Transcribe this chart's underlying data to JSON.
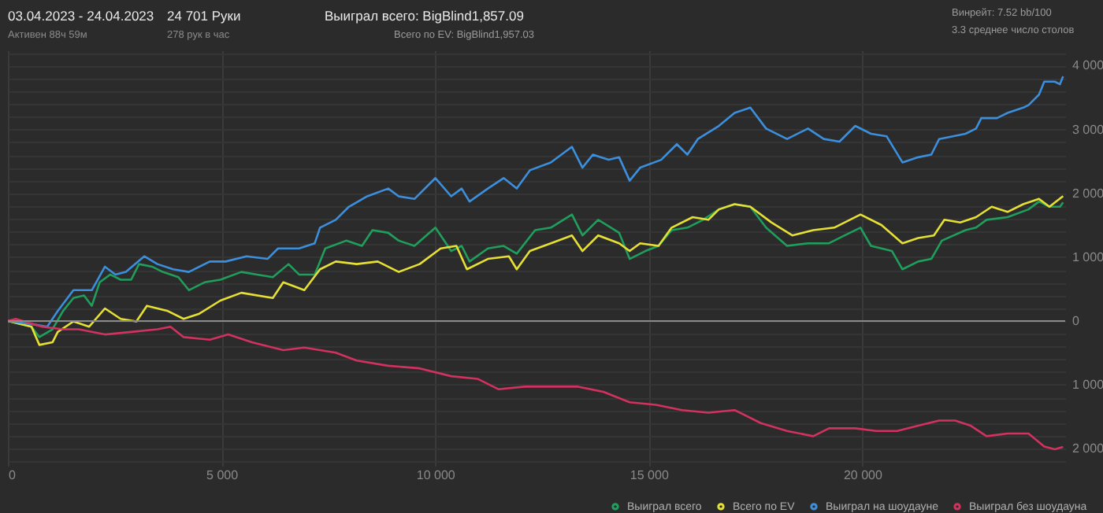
{
  "chart_data": {
    "type": "line",
    "title": "03.04.2023 - 24.04.2023",
    "subtitle": "Активен 88ч 59м",
    "annotations": [
      "24 701 Руки",
      "278 рук в час",
      "Выиграл всего: BigBlind1,857.09",
      "Всего по EV: BigBlind1,957.03",
      "Винрейт: 7.52 bb/100",
      "3.3 среднее число столов"
    ],
    "series": [
      {
        "name": "Выиграл всего",
        "color": "#1f9e5c",
        "x": [
          0,
          553,
          737,
          1044,
          1290,
          1535,
          1781,
          1965,
          2149,
          2395,
          2640,
          2886,
          3070,
          3377,
          3623,
          3991,
          4237,
          4605,
          4974,
          5465,
          5833,
          6202,
          6570,
          6816,
          7184,
          7430,
          7921,
          8289,
          8535,
          8903,
          9149,
          9517,
          10008,
          10377,
          10622,
          10807,
          11236,
          11605,
          11912,
          12342,
          12710,
          13204,
          13450,
          13818,
          14309,
          14555,
          14923,
          15230,
          15537,
          15906,
          16274,
          16643,
          17011,
          17380,
          17748,
          18239,
          18730,
          19221,
          19590,
          19958,
          20204,
          20695,
          20941,
          21309,
          21616,
          21862,
          22417,
          22663,
          22909,
          23400,
          23891,
          24137,
          24382,
          24628,
          24701
        ],
        "values": [
          0,
          -90,
          -253,
          -131,
          155,
          359,
          400,
          237,
          605,
          727,
          646,
          646,
          891,
          850,
          768,
          686,
          482,
          605,
          646,
          768,
          727,
          686,
          891,
          727,
          727,
          1136,
          1258,
          1176,
          1422,
          1381,
          1258,
          1176,
          1462,
          1095,
          1176,
          931,
          1136,
          1176,
          1054,
          1422,
          1462,
          1667,
          1340,
          1585,
          1381,
          972,
          1095,
          1176,
          1422,
          1462,
          1585,
          1748,
          1830,
          1789,
          1462,
          1176,
          1217,
          1217,
          1340,
          1462,
          1176,
          1095,
          809,
          931,
          972,
          1258,
          1422,
          1462,
          1585,
          1626,
          1748,
          1871,
          1789,
          1789,
          1857
        ]
      },
      {
        "name": "Всего по EV",
        "color": "#e6e035",
        "x": [
          0,
          553,
          737,
          1044,
          1167,
          1535,
          1903,
          2272,
          2640,
          3009,
          3254,
          3745,
          4114,
          4482,
          4974,
          5465,
          6202,
          6447,
          6939,
          7307,
          7675,
          8166,
          8658,
          9149,
          9640,
          10131,
          10500,
          10745,
          11236,
          11728,
          11912,
          12219,
          12710,
          13204,
          13450,
          13818,
          14309,
          14555,
          14801,
          15230,
          15537,
          16029,
          16397,
          16643,
          17011,
          17380,
          17871,
          18362,
          18853,
          19344,
          19958,
          20449,
          20941,
          21309,
          21677,
          21923,
          22294,
          22663,
          23031,
          23400,
          23768,
          24137,
          24382,
          24701
        ],
        "values": [
          0,
          -90,
          -376,
          -335,
          -172,
          -8,
          -90,
          196,
          33,
          -8,
          237,
          155,
          33,
          114,
          319,
          441,
          359,
          605,
          482,
          809,
          931,
          891,
          931,
          768,
          891,
          1136,
          1176,
          809,
          972,
          1013,
          809,
          1095,
          1217,
          1340,
          1095,
          1340,
          1217,
          1095,
          1217,
          1176,
          1462,
          1626,
          1585,
          1748,
          1830,
          1789,
          1544,
          1340,
          1422,
          1462,
          1667,
          1503,
          1217,
          1299,
          1340,
          1585,
          1544,
          1626,
          1789,
          1708,
          1830,
          1912,
          1789,
          1957
        ]
      },
      {
        "name": "Выиграл на шоудауне",
        "color": "#3c8fdd",
        "x": [
          0,
          553,
          921,
          1167,
          1535,
          1965,
          2272,
          2518,
          2763,
          3193,
          3500,
          3868,
          4237,
          4728,
          5096,
          5588,
          6079,
          6324,
          6816,
          7184,
          7307,
          7675,
          7982,
          8412,
          8903,
          9149,
          9517,
          10008,
          10377,
          10622,
          10807,
          11236,
          11605,
          11912,
          12219,
          12710,
          13204,
          13450,
          13695,
          14064,
          14309,
          14555,
          14801,
          15292,
          15660,
          15906,
          16151,
          16643,
          17011,
          17380,
          17748,
          18239,
          18730,
          19099,
          19467,
          19836,
          20204,
          20572,
          20941,
          21309,
          21616,
          21800,
          22417,
          22663,
          22786,
          23154,
          23400,
          23768,
          23891,
          24137,
          24260,
          24505,
          24628,
          24701
        ],
        "values": [
          0,
          -49,
          -90,
          155,
          482,
          482,
          850,
          727,
          768,
          1013,
          891,
          809,
          768,
          931,
          931,
          1013,
          972,
          1136,
          1136,
          1217,
          1462,
          1585,
          1789,
          1953,
          2075,
          1953,
          1912,
          2239,
          1953,
          2075,
          1871,
          2075,
          2239,
          2075,
          2361,
          2484,
          2729,
          2402,
          2606,
          2525,
          2565,
          2198,
          2402,
          2525,
          2770,
          2606,
          2851,
          3056,
          3260,
          3342,
          3015,
          2851,
          3015,
          2851,
          2810,
          3056,
          2933,
          2892,
          2484,
          2565,
          2606,
          2851,
          2933,
          3015,
          3178,
          3178,
          3260,
          3342,
          3382,
          3546,
          3750,
          3750,
          3709,
          3832
        ]
      },
      {
        "name": "Выиграл без шоудауна",
        "color": "#d1325f",
        "x": [
          0,
          184,
          798,
          1290,
          1658,
          2272,
          2886,
          3500,
          3807,
          4114,
          4728,
          5158,
          5711,
          6447,
          6939,
          7675,
          8166,
          8903,
          9640,
          10377,
          10991,
          11482,
          12096,
          12710,
          13327,
          13941,
          14555,
          15169,
          15783,
          16397,
          17011,
          17625,
          18239,
          18853,
          19221,
          19836,
          20327,
          20818,
          21309,
          21800,
          22172,
          22540,
          22909,
          23400,
          23891,
          24260,
          24505,
          24701
        ],
        "values": [
          0,
          33,
          -90,
          -131,
          -131,
          -212,
          -172,
          -131,
          -90,
          -253,
          -294,
          -212,
          -335,
          -458,
          -417,
          -498,
          -621,
          -703,
          -743,
          -866,
          -907,
          -1070,
          -1029,
          -1029,
          -1029,
          -1111,
          -1275,
          -1315,
          -1397,
          -1438,
          -1397,
          -1601,
          -1724,
          -1806,
          -1683,
          -1683,
          -1724,
          -1724,
          -1642,
          -1561,
          -1561,
          -1642,
          -1806,
          -1765,
          -1765,
          -1969,
          -2010,
          -1975
        ]
      }
    ],
    "xlim": [
      0,
      24750
    ],
    "ylim": [
      -2270,
      4240
    ],
    "xticks": [
      0,
      {
        "value": 5000,
        "label": "5 000"
      },
      {
        "value": 10000,
        "label": "10 000"
      },
      {
        "value": 15000,
        "label": "15 000"
      },
      {
        "value": 20000,
        "label": "20 000"
      }
    ],
    "yticks": [
      {
        "value": -2200,
        "label": null
      },
      {
        "value": -2000,
        "label": "2 000"
      },
      {
        "value": -1800,
        "label": null
      },
      {
        "value": -1600,
        "label": null
      },
      {
        "value": -1400,
        "label": null
      },
      {
        "value": -1200,
        "label": null
      },
      {
        "value": -1000,
        "label": "1 000"
      },
      {
        "value": -800,
        "label": null
      },
      {
        "value": -600,
        "label": null
      },
      {
        "value": -400,
        "label": null
      },
      {
        "value": -200,
        "label": null
      },
      0,
      {
        "value": 200,
        "label": null
      },
      {
        "value": 400,
        "label": null
      },
      {
        "value": 600,
        "label": null
      },
      {
        "value": 800,
        "label": null
      },
      {
        "value": 1000,
        "label": "1 000"
      },
      {
        "value": 1200,
        "label": null
      },
      {
        "value": 1400,
        "label": null
      },
      {
        "value": 1600,
        "label": null
      },
      {
        "value": 1800,
        "label": null
      },
      {
        "value": 2000,
        "label": "2 000"
      },
      {
        "value": 2200,
        "label": null
      },
      {
        "value": 2400,
        "label": null
      },
      {
        "value": 2600,
        "label": null
      },
      {
        "value": 2800,
        "label": null
      },
      {
        "value": 3000,
        "label": "3 000"
      },
      {
        "value": 3200,
        "label": null
      },
      {
        "value": 3400,
        "label": null
      },
      {
        "value": 3600,
        "label": null
      },
      {
        "value": 3800,
        "label": null
      },
      {
        "value": 4000,
        "label": "4 000"
      },
      {
        "value": 4200,
        "label": null
      }
    ],
    "ref_lines": [
      {
        "axis": "y",
        "value": 0,
        "color": "#8a8a8a"
      }
    ],
    "grid": true,
    "legend": "bottom right",
    "marker": "none",
    "line_style": "solid"
  }
}
